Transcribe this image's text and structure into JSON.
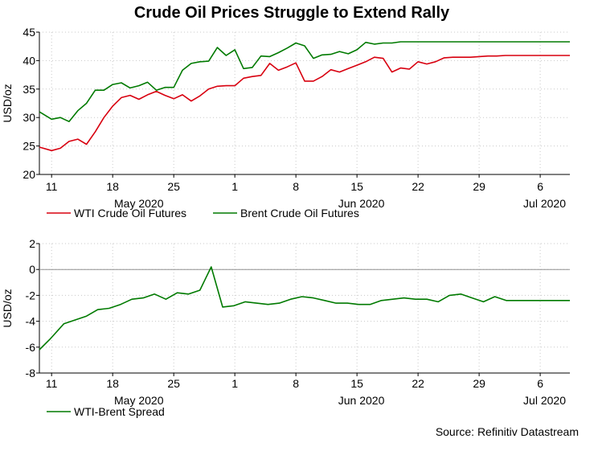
{
  "title": "Crude Oil Prices Struggle to Extend Rally",
  "source": "Source: Refinitiv Datastream",
  "colors": {
    "wti": "#d8000f",
    "brent": "#007a00",
    "spread": "#007a00",
    "grid": "#c8c8c8",
    "zero": "#909090"
  },
  "chart_data": [
    {
      "type": "line",
      "ylabel": "USD/oz",
      "ylim": [
        20,
        45
      ],
      "yticks": [
        20,
        25,
        30,
        35,
        40,
        45
      ],
      "xlim": [
        9.6,
        70.4
      ],
      "x_day_ticks": [
        {
          "x": 11,
          "label": "11"
        },
        {
          "x": 18,
          "label": "18"
        },
        {
          "x": 25,
          "label": "25"
        },
        {
          "x": 32,
          "label": "1"
        },
        {
          "x": 39,
          "label": "8"
        },
        {
          "x": 46,
          "label": "15"
        },
        {
          "x": 53,
          "label": "22"
        },
        {
          "x": 60,
          "label": "29"
        },
        {
          "x": 67,
          "label": "6"
        }
      ],
      "x_month_labels": [
        {
          "x": 21,
          "label": "May 2020"
        },
        {
          "x": 46.5,
          "label": "Jun 2020"
        },
        {
          "x": 67.5,
          "label": "Jul 2020"
        }
      ],
      "grid": true,
      "legend": "bottom",
      "series": [
        {
          "name": "WTI Crude Oil Futures",
          "color_key": "wti",
          "x": [
            9.6,
            11,
            12,
            13,
            14,
            15,
            16,
            17,
            18,
            19,
            20,
            21,
            22,
            23,
            24,
            25,
            26,
            27,
            28,
            29,
            30,
            31,
            32,
            33,
            34,
            35,
            36,
            37,
            38,
            39,
            40,
            41,
            42,
            43,
            44,
            45,
            46,
            47,
            48,
            49,
            50,
            51,
            52,
            53,
            54,
            55,
            56,
            57,
            58,
            59,
            60,
            61,
            62,
            63,
            64,
            65,
            66,
            67,
            68,
            69,
            70.4
          ],
          "values": [
            24.8,
            24.2,
            24.6,
            25.8,
            26.2,
            25.3,
            27.5,
            30.0,
            32.0,
            33.5,
            33.9,
            33.2,
            34.0,
            34.6,
            33.9,
            33.3,
            34.0,
            32.9,
            33.8,
            35.0,
            35.5,
            35.6,
            35.6,
            36.9,
            37.2,
            37.4,
            39.5,
            38.3,
            38.9,
            39.6,
            36.4,
            36.4,
            37.2,
            38.4,
            38.0,
            38.6,
            39.2,
            39.8,
            40.6,
            40.4,
            38.0,
            38.7,
            38.5,
            39.8,
            39.4,
            39.8,
            40.5,
            40.6,
            40.6,
            40.6,
            40.7,
            40.8,
            40.8,
            40.9,
            40.9,
            40.9,
            40.9,
            40.9,
            40.9,
            40.9,
            40.9
          ],
          "values_note": "approximate daily closes"
        },
        {
          "name": "Brent Crude Oil Futures",
          "color_key": "brent",
          "x": [
            9.6,
            11,
            12,
            13,
            14,
            15,
            16,
            17,
            18,
            19,
            20,
            21,
            22,
            23,
            24,
            25,
            26,
            27,
            28,
            29,
            30,
            31,
            32,
            33,
            34,
            35,
            36,
            37,
            38,
            39,
            40,
            41,
            42,
            43,
            44,
            45,
            46,
            47,
            48,
            49,
            50,
            51,
            52,
            53,
            54,
            55,
            56,
            57,
            58,
            59,
            60,
            61,
            62,
            63,
            64,
            65,
            66,
            67,
            68,
            69,
            70.4
          ],
          "values": [
            31.0,
            29.7,
            30.0,
            29.3,
            31.2,
            32.5,
            34.8,
            34.8,
            35.8,
            36.1,
            35.2,
            35.6,
            36.2,
            34.8,
            35.3,
            35.3,
            38.3,
            39.5,
            39.8,
            39.9,
            42.3,
            40.9,
            41.9,
            38.6,
            38.8,
            40.8,
            40.7,
            41.4,
            42.2,
            43.1,
            42.6,
            40.4,
            41.0,
            41.1,
            41.6,
            41.2,
            41.9,
            43.2,
            42.9,
            43.1,
            43.1,
            43.3,
            43.3,
            43.3,
            43.3,
            43.3,
            43.3,
            43.3,
            43.3,
            43.3,
            43.3,
            43.3,
            43.3,
            43.3,
            43.3,
            43.3,
            43.3,
            43.3,
            43.3,
            43.3,
            43.3
          ],
          "values_note": "approximate daily closes"
        }
      ]
    },
    {
      "type": "line",
      "ylabel": "USD/oz",
      "ylim": [
        -8,
        2
      ],
      "yticks": [
        -8,
        -6,
        -4,
        -2,
        0,
        2
      ],
      "xlim": [
        9.6,
        70.4
      ],
      "x_day_ticks": [
        {
          "x": 11,
          "label": "11"
        },
        {
          "x": 18,
          "label": "18"
        },
        {
          "x": 25,
          "label": "25"
        },
        {
          "x": 32,
          "label": "1"
        },
        {
          "x": 39,
          "label": "8"
        },
        {
          "x": 46,
          "label": "15"
        },
        {
          "x": 53,
          "label": "22"
        },
        {
          "x": 60,
          "label": "29"
        },
        {
          "x": 67,
          "label": "6"
        }
      ],
      "x_month_labels": [
        {
          "x": 21,
          "label": "May 2020"
        },
        {
          "x": 46.5,
          "label": "Jun 2020"
        },
        {
          "x": 67.5,
          "label": "Jul 2020"
        }
      ],
      "grid": true,
      "zero_line": true,
      "legend": "bottom",
      "series": [
        {
          "name": "WTI-Brent Spread",
          "color_key": "spread",
          "x": [
            9.6,
            10.8,
            12.4,
            15.0,
            16.3,
            17.6,
            18.9,
            20.2,
            21.5,
            22.8,
            24.1,
            25.4,
            26.7,
            28.0,
            29.3,
            30.6,
            31.9,
            33.2,
            34.5,
            35.8,
            37.1,
            38.4,
            39.7,
            41.0,
            42.3,
            43.6,
            44.9,
            46.2,
            47.5,
            48.8,
            50.1,
            51.4,
            52.7,
            54.0,
            55.3,
            56.6,
            57.9,
            59.2,
            60.5,
            61.8,
            63.1,
            64.4,
            65.7,
            67.0,
            68.3,
            69.6,
            70.4
          ],
          "values": [
            -6.2,
            -5.4,
            -4.2,
            -3.6,
            -3.1,
            -3.0,
            -2.7,
            -2.3,
            -2.2,
            -1.9,
            -2.3,
            -1.8,
            -1.9,
            -1.6,
            0.2,
            -2.9,
            -2.8,
            -2.5,
            -2.6,
            -2.7,
            -2.6,
            -2.3,
            -2.1,
            -2.2,
            -2.4,
            -2.6,
            -2.6,
            -2.7,
            -2.7,
            -2.4,
            -2.3,
            -2.2,
            -2.3,
            -2.3,
            -2.5,
            -2.0,
            -1.9,
            -2.2,
            -2.5,
            -2.1,
            -2.4,
            -2.4,
            -2.4,
            -2.4,
            -2.4,
            -2.4,
            -2.4
          ],
          "values_note": "approximate"
        }
      ]
    }
  ]
}
